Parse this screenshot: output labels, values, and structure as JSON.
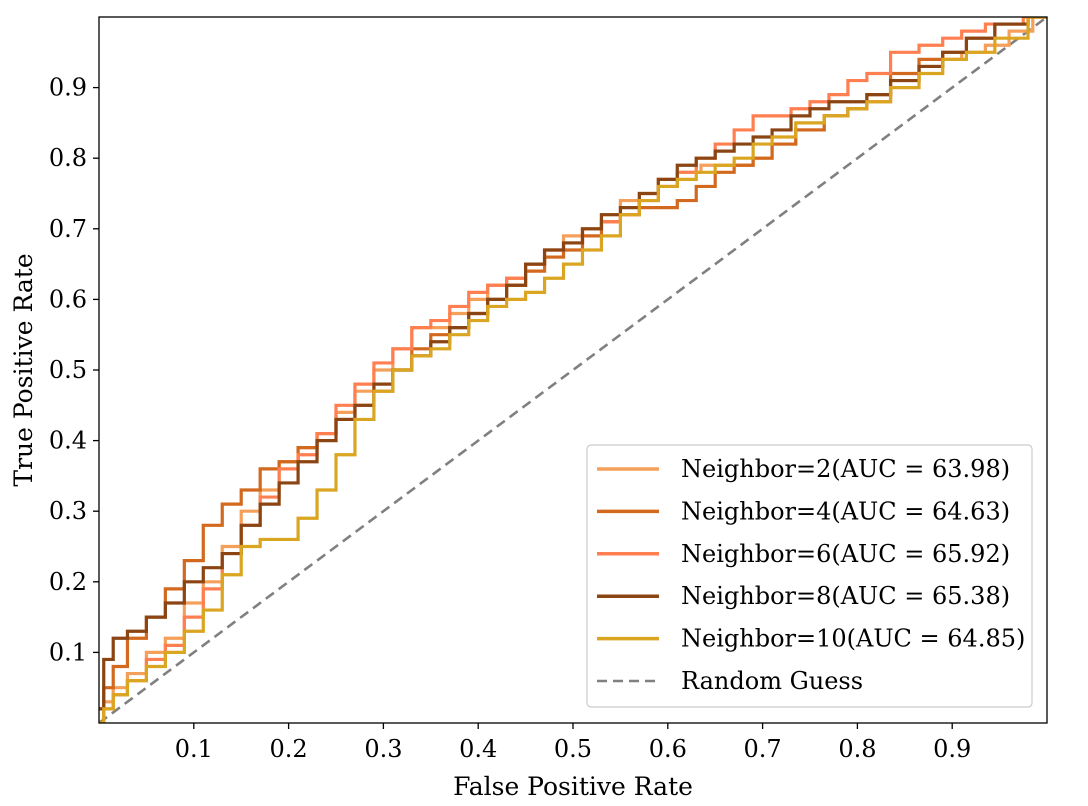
{
  "chart_data": {
    "type": "line",
    "title": "",
    "xlabel": "False Positive Rate",
    "ylabel": "True Positive Rate",
    "xlim": [
      0.0,
      1.0
    ],
    "ylim": [
      0.0,
      1.0
    ],
    "xticks": [
      "0.1",
      "0.2",
      "0.3",
      "0.4",
      "0.5",
      "0.6",
      "0.7",
      "0.8",
      "0.9"
    ],
    "yticks": [
      "0.1",
      "0.2",
      "0.3",
      "0.4",
      "0.5",
      "0.6",
      "0.7",
      "0.8",
      "0.9"
    ],
    "grid": false,
    "legend_position": "bottom-right",
    "series": [
      {
        "name": "Neighbor=2(AUC = 63.98)",
        "color": "#F5A05A",
        "style": "solid",
        "x": [
          0.0,
          0.01,
          0.02,
          0.04,
          0.06,
          0.08,
          0.1,
          0.12,
          0.14,
          0.16,
          0.18,
          0.2,
          0.22,
          0.24,
          0.26,
          0.28,
          0.3,
          0.32,
          0.34,
          0.36,
          0.38,
          0.4,
          0.42,
          0.44,
          0.46,
          0.48,
          0.5,
          0.52,
          0.54,
          0.56,
          0.58,
          0.6,
          0.62,
          0.65,
          0.68,
          0.7,
          0.72,
          0.75,
          0.78,
          0.8,
          0.82,
          0.85,
          0.88,
          0.9,
          0.92,
          0.95,
          0.97,
          1.0
        ],
        "y": [
          0.0,
          0.03,
          0.05,
          0.07,
          0.1,
          0.12,
          0.17,
          0.2,
          0.25,
          0.3,
          0.33,
          0.37,
          0.39,
          0.41,
          0.44,
          0.47,
          0.5,
          0.53,
          0.56,
          0.56,
          0.58,
          0.6,
          0.62,
          0.63,
          0.65,
          0.66,
          0.69,
          0.7,
          0.72,
          0.74,
          0.75,
          0.77,
          0.78,
          0.79,
          0.79,
          0.8,
          0.82,
          0.84,
          0.86,
          0.87,
          0.88,
          0.91,
          0.93,
          0.94,
          0.95,
          0.96,
          0.98,
          1.0
        ]
      },
      {
        "name": "Neighbor=4(AUC = 64.63)",
        "color": "#D2691E",
        "style": "solid",
        "x": [
          0.0,
          0.01,
          0.02,
          0.04,
          0.06,
          0.08,
          0.1,
          0.12,
          0.14,
          0.16,
          0.18,
          0.2,
          0.22,
          0.24,
          0.26,
          0.28,
          0.3,
          0.32,
          0.34,
          0.36,
          0.38,
          0.4,
          0.42,
          0.44,
          0.46,
          0.48,
          0.5,
          0.52,
          0.54,
          0.56,
          0.58,
          0.6,
          0.62,
          0.64,
          0.66,
          0.68,
          0.7,
          0.72,
          0.75,
          0.78,
          0.8,
          0.82,
          0.85,
          0.88,
          0.9,
          0.93,
          0.96,
          1.0
        ],
        "y": [
          0.02,
          0.05,
          0.08,
          0.12,
          0.15,
          0.19,
          0.23,
          0.28,
          0.31,
          0.33,
          0.36,
          0.37,
          0.39,
          0.41,
          0.43,
          0.45,
          0.47,
          0.5,
          0.53,
          0.55,
          0.56,
          0.58,
          0.6,
          0.62,
          0.64,
          0.66,
          0.67,
          0.69,
          0.71,
          0.72,
          0.73,
          0.73,
          0.74,
          0.76,
          0.78,
          0.79,
          0.8,
          0.82,
          0.84,
          0.86,
          0.87,
          0.89,
          0.92,
          0.94,
          0.95,
          0.97,
          0.99,
          1.0
        ]
      },
      {
        "name": "Neighbor=6(AUC = 65.92)",
        "color": "#FF7F50",
        "style": "solid",
        "x": [
          0.0,
          0.01,
          0.02,
          0.04,
          0.06,
          0.08,
          0.1,
          0.12,
          0.14,
          0.16,
          0.18,
          0.2,
          0.22,
          0.24,
          0.26,
          0.28,
          0.3,
          0.32,
          0.34,
          0.36,
          0.38,
          0.4,
          0.42,
          0.44,
          0.46,
          0.48,
          0.5,
          0.52,
          0.54,
          0.56,
          0.58,
          0.6,
          0.62,
          0.64,
          0.66,
          0.68,
          0.7,
          0.72,
          0.74,
          0.76,
          0.78,
          0.8,
          0.82,
          0.85,
          0.88,
          0.9,
          0.92,
          0.95,
          1.0
        ],
        "y": [
          0.0,
          0.02,
          0.04,
          0.06,
          0.09,
          0.11,
          0.15,
          0.19,
          0.24,
          0.28,
          0.32,
          0.36,
          0.38,
          0.41,
          0.45,
          0.48,
          0.51,
          0.53,
          0.56,
          0.57,
          0.59,
          0.61,
          0.62,
          0.63,
          0.65,
          0.67,
          0.68,
          0.7,
          0.71,
          0.72,
          0.74,
          0.76,
          0.78,
          0.8,
          0.82,
          0.84,
          0.86,
          0.86,
          0.87,
          0.88,
          0.89,
          0.91,
          0.92,
          0.95,
          0.96,
          0.97,
          0.98,
          0.99,
          1.0
        ]
      },
      {
        "name": "Neighbor=8(AUC = 65.38)",
        "color": "#8B4513",
        "style": "solid",
        "x": [
          0.0,
          0.01,
          0.02,
          0.04,
          0.06,
          0.08,
          0.1,
          0.12,
          0.14,
          0.16,
          0.18,
          0.2,
          0.22,
          0.24,
          0.26,
          0.28,
          0.3,
          0.32,
          0.34,
          0.36,
          0.38,
          0.4,
          0.42,
          0.44,
          0.46,
          0.48,
          0.5,
          0.52,
          0.54,
          0.56,
          0.58,
          0.6,
          0.62,
          0.64,
          0.66,
          0.68,
          0.7,
          0.72,
          0.74,
          0.76,
          0.78,
          0.8,
          0.82,
          0.85,
          0.88,
          0.9,
          0.93,
          0.96,
          1.0
        ],
        "y": [
          0.02,
          0.09,
          0.12,
          0.13,
          0.15,
          0.17,
          0.2,
          0.22,
          0.24,
          0.28,
          0.31,
          0.34,
          0.37,
          0.4,
          0.43,
          0.45,
          0.48,
          0.5,
          0.52,
          0.54,
          0.56,
          0.58,
          0.6,
          0.62,
          0.65,
          0.67,
          0.68,
          0.7,
          0.72,
          0.73,
          0.75,
          0.77,
          0.79,
          0.8,
          0.81,
          0.82,
          0.83,
          0.84,
          0.86,
          0.87,
          0.88,
          0.88,
          0.89,
          0.91,
          0.93,
          0.95,
          0.97,
          0.99,
          1.0
        ]
      },
      {
        "name": "Neighbor=10(AUC = 64.85)",
        "color": "#DAA520",
        "style": "solid",
        "x": [
          0.0,
          0.01,
          0.02,
          0.04,
          0.06,
          0.08,
          0.1,
          0.12,
          0.14,
          0.16,
          0.18,
          0.2,
          0.22,
          0.24,
          0.26,
          0.28,
          0.3,
          0.32,
          0.34,
          0.36,
          0.38,
          0.4,
          0.42,
          0.44,
          0.46,
          0.48,
          0.5,
          0.52,
          0.54,
          0.56,
          0.58,
          0.6,
          0.62,
          0.64,
          0.66,
          0.68,
          0.7,
          0.72,
          0.75,
          0.78,
          0.8,
          0.82,
          0.85,
          0.88,
          0.9,
          0.93,
          0.96,
          1.0
        ],
        "y": [
          0.0,
          0.02,
          0.04,
          0.06,
          0.08,
          0.1,
          0.13,
          0.16,
          0.21,
          0.25,
          0.26,
          0.26,
          0.29,
          0.33,
          0.38,
          0.43,
          0.47,
          0.5,
          0.52,
          0.53,
          0.55,
          0.57,
          0.59,
          0.6,
          0.61,
          0.63,
          0.65,
          0.67,
          0.69,
          0.72,
          0.74,
          0.76,
          0.77,
          0.78,
          0.79,
          0.8,
          0.82,
          0.83,
          0.85,
          0.86,
          0.87,
          0.88,
          0.9,
          0.92,
          0.94,
          0.95,
          0.97,
          1.0
        ]
      },
      {
        "name": "Random Guess",
        "color": "#808080",
        "style": "dashed",
        "x": [
          0.0,
          1.0
        ],
        "y": [
          0.0,
          1.0
        ]
      }
    ]
  }
}
